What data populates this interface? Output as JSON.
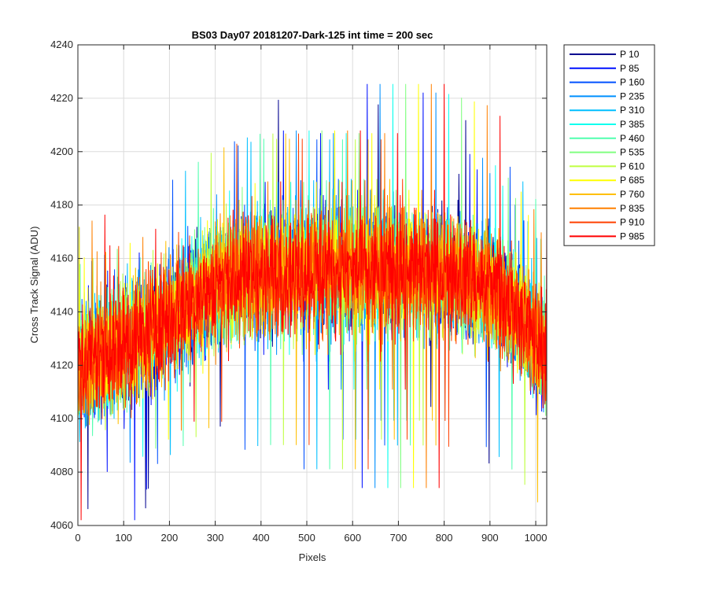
{
  "chart_data": {
    "type": "line",
    "title": "BS03 Day07 20181207-Dark-125 int time = 200 sec",
    "xlabel": "Pixels",
    "ylabel": "Cross Track Signal (ADU)",
    "xlim": [
      0,
      1024
    ],
    "ylim": [
      4060,
      4240
    ],
    "xticks": [
      "0",
      "100",
      "200",
      "300",
      "400",
      "500",
      "600",
      "700",
      "800",
      "900",
      "1000"
    ],
    "yticks": [
      "4060",
      "4080",
      "4100",
      "4120",
      "4140",
      "4160",
      "4180",
      "4200",
      "4220",
      "4240"
    ],
    "grid": true,
    "legend_position": "outside-top-right",
    "profile_note_points": {
      "x": [
        0,
        150,
        300,
        400,
        500,
        600,
        700,
        800,
        900,
        960,
        1024
      ],
      "center": [
        4120,
        4132,
        4150,
        4155,
        4155,
        4155,
        4155,
        4155,
        4150,
        4140,
        4125
      ],
      "spread": 30
    },
    "series": [
      {
        "name": "P 10",
        "color": "#00008f"
      },
      {
        "name": "P 85",
        "color": "#0010ff"
      },
      {
        "name": "P 160",
        "color": "#0050ff"
      },
      {
        "name": "P 235",
        "color": "#0090ff"
      },
      {
        "name": "P 310",
        "color": "#00bfff"
      },
      {
        "name": "P 385",
        "color": "#10ffef"
      },
      {
        "name": "P 460",
        "color": "#50ffaf"
      },
      {
        "name": "P 535",
        "color": "#80ff80"
      },
      {
        "name": "P 610",
        "color": "#bfff40"
      },
      {
        "name": "P 685",
        "color": "#ffff00"
      },
      {
        "name": "P 760",
        "color": "#ffbf00"
      },
      {
        "name": "P 835",
        "color": "#ff8000"
      },
      {
        "name": "P 910",
        "color": "#ff4000"
      },
      {
        "name": "P 985",
        "color": "#ff0000"
      }
    ]
  }
}
